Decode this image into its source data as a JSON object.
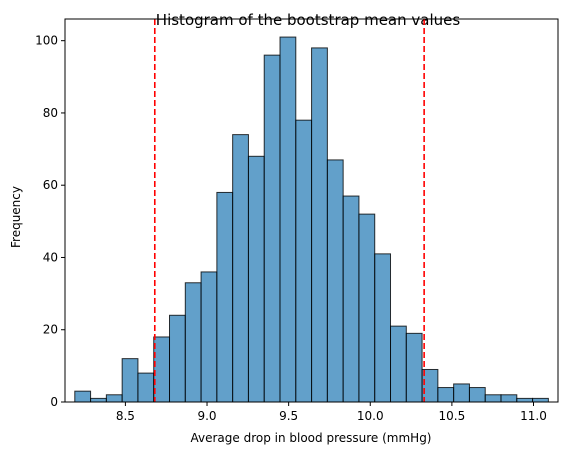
{
  "chart_data": {
    "type": "bar",
    "subtype": "histogram",
    "title": "Histogram of the bootstrap mean values",
    "xlabel": "Average drop in blood pressure (mmHg)",
    "ylabel": "Frequency",
    "xlim": [
      8.13,
      11.15
    ],
    "ylim": [
      0,
      106
    ],
    "xticks": [
      "8.5",
      "9.0",
      "9.5",
      "10.0",
      "10.5",
      "11.0"
    ],
    "yticks": [
      "0",
      "20",
      "40",
      "60",
      "80",
      "100"
    ],
    "grid": false,
    "bin_start": 8.19,
    "bin_width": 0.0967,
    "values": [
      3,
      1,
      2,
      12,
      8,
      18,
      24,
      33,
      36,
      58,
      74,
      68,
      96,
      101,
      78,
      98,
      67,
      57,
      52,
      41,
      21,
      19,
      9,
      4,
      5,
      4,
      2,
      2,
      1,
      1
    ],
    "bar_color": "#1f77b4",
    "bar_alpha": 0.7,
    "edge_color": "#000000",
    "reference_lines": [
      {
        "x": 8.68,
        "color": "#ff0000",
        "style": "dashed"
      },
      {
        "x": 10.33,
        "color": "#ff0000",
        "style": "dashed"
      }
    ]
  }
}
